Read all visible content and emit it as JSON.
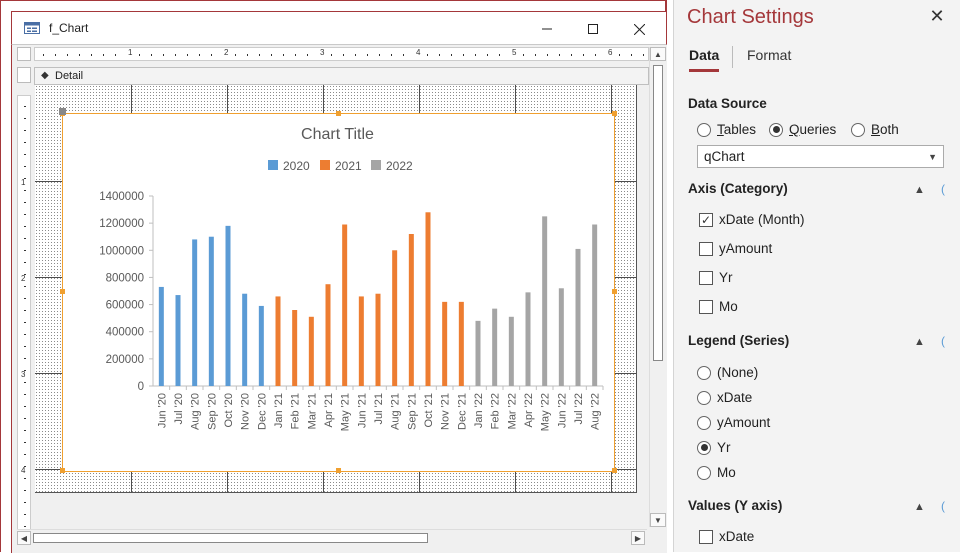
{
  "window": {
    "title": "f_Chart"
  },
  "design": {
    "section_label": "Detail",
    "ruler_h": [
      "1",
      "2",
      "3",
      "4",
      "5",
      "6"
    ],
    "ruler_v": [
      "1",
      "2",
      "3",
      "4"
    ]
  },
  "chart_data": {
    "type": "bar",
    "title": "Chart Title",
    "categories": [
      "Jun '20",
      "Jul '20",
      "Aug '20",
      "Sep '20",
      "Oct '20",
      "Nov '20",
      "Dec '20",
      "Jan '21",
      "Feb '21",
      "Mar '21",
      "Apr '21",
      "May '21",
      "Jun '21",
      "Jul '21",
      "Aug '21",
      "Sep '21",
      "Oct '21",
      "Nov '21",
      "Dec '21",
      "Jan '22",
      "Feb '22",
      "Mar '22",
      "Apr '22",
      "May '22",
      "Jun '22",
      "Jul '22",
      "Aug '22"
    ],
    "series": [
      {
        "name": "2020",
        "color": "#5b9bd5",
        "values": [
          730000,
          670000,
          1080000,
          1100000,
          1180000,
          680000,
          590000,
          null,
          null,
          null,
          null,
          null,
          null,
          null,
          null,
          null,
          null,
          null,
          null,
          null,
          null,
          null,
          null,
          null,
          null,
          null,
          null
        ]
      },
      {
        "name": "2021",
        "color": "#ed7d31",
        "values": [
          null,
          null,
          null,
          null,
          null,
          null,
          null,
          660000,
          560000,
          510000,
          750000,
          1190000,
          660000,
          680000,
          1000000,
          1120000,
          1280000,
          620000,
          620000,
          null,
          null,
          null,
          null,
          null,
          null,
          null,
          null
        ]
      },
      {
        "name": "2022",
        "color": "#a5a5a5",
        "values": [
          null,
          null,
          null,
          null,
          null,
          null,
          null,
          null,
          null,
          null,
          null,
          null,
          null,
          null,
          null,
          null,
          null,
          null,
          null,
          480000,
          570000,
          510000,
          690000,
          1250000,
          720000,
          1010000,
          1190000
        ]
      }
    ],
    "y_ticks": [
      "0",
      "200000",
      "400000",
      "600000",
      "800000",
      "1000000",
      "1200000",
      "1400000"
    ],
    "ylim": [
      0,
      1400000
    ],
    "legend_position": "top",
    "grid": false
  },
  "settings": {
    "title": "Chart Settings",
    "close_glyph": "✕",
    "tabs": [
      {
        "label": "Data",
        "active": true
      },
      {
        "label": "Format",
        "active": false
      }
    ],
    "data_source": {
      "heading": "Data Source",
      "options": [
        {
          "label": "Tables",
          "selected": false
        },
        {
          "label": "Queries",
          "selected": true
        },
        {
          "label": "Both",
          "selected": false
        }
      ],
      "selected_value": "qChart"
    },
    "axis": {
      "heading": "Axis (Category)",
      "items": [
        {
          "label": "xDate (Month)",
          "checked": true
        },
        {
          "label": "yAmount",
          "checked": false
        },
        {
          "label": "Yr",
          "checked": false
        },
        {
          "label": "Mo",
          "checked": false
        }
      ]
    },
    "legend": {
      "heading": "Legend (Series)",
      "items": [
        {
          "label": "(None)",
          "selected": false
        },
        {
          "label": "xDate",
          "selected": false
        },
        {
          "label": "yAmount",
          "selected": false
        },
        {
          "label": "Yr",
          "selected": true
        },
        {
          "label": "Mo",
          "selected": false
        }
      ]
    },
    "values": {
      "heading": "Values (Y axis)",
      "items": [
        {
          "label": "xDate",
          "checked": false
        }
      ]
    }
  }
}
